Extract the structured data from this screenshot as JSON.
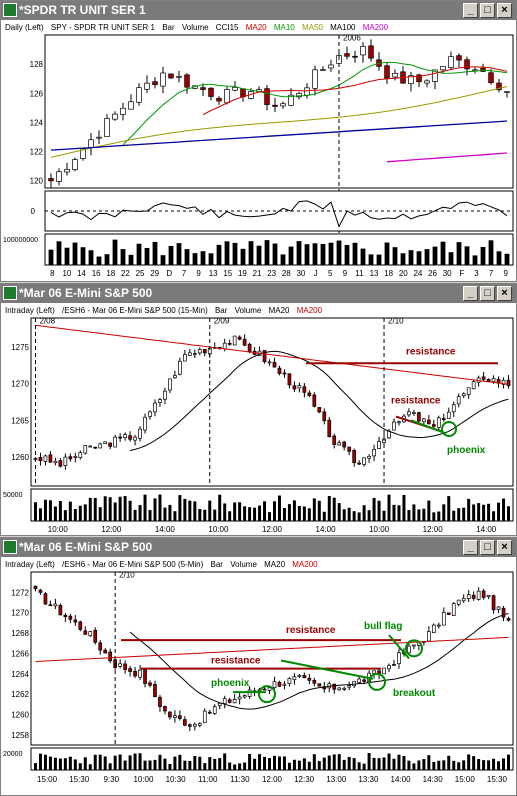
{
  "colors": {
    "title_bg": "#7a7a7a",
    "up": "#ffffff",
    "down": "#a00000",
    "ma20": "#cc0000",
    "ma10": "#009900",
    "ma50": "#999900",
    "ma100": "#000099",
    "ma200": "#cc00cc",
    "annot_red": "#990000",
    "annot_green": "#008800"
  },
  "windows": [
    {
      "title": "*SPDR TR UNIT SER 1",
      "info": [
        "Daily (Left)",
        "SPY - SPDR TR UNIT SER 1",
        "Bar",
        "Volume",
        "CCI15",
        "MA20",
        "MA10",
        "MA50",
        "MA100",
        "MA200"
      ],
      "period_label": "2006"
    },
    {
      "title": "*Mar 06  E-Mini S&P 500",
      "info": [
        "Intraday (Left)",
        "/ESH6 - Mar 06  E-Mini S&P 500 (15-Min)",
        "Bar",
        "Volume",
        "MA20",
        "MA200"
      ]
    },
    {
      "title": "*Mar 06  E-Mini S&P 500",
      "info": [
        "Intraday (Left)",
        "/ESH6 - Mar 06  E-Mini S&P 500 (5-Min)",
        "Bar",
        "Volume",
        "MA20",
        "MA200"
      ]
    }
  ],
  "chart_data": [
    {
      "type": "candlestick",
      "title": "SPY daily",
      "ylim": [
        119.5,
        130
      ],
      "yticks": [
        "128",
        "126",
        "124",
        "122",
        "120"
      ],
      "xlabels": [
        "8",
        "10",
        "14",
        "16",
        "18",
        "22",
        "25",
        "29",
        "D",
        "7",
        "9",
        "13",
        "15",
        "19",
        "21",
        "23",
        "28",
        "30",
        "J",
        "5",
        "9",
        "11",
        "13",
        "18",
        "20",
        "24",
        "26",
        "30",
        "F",
        "3",
        "7",
        "9"
      ],
      "indicator_label": "0",
      "volume_label": "100000000"
    },
    {
      "type": "candlestick",
      "title": "ES 15-min",
      "ylim": [
        1256,
        1279
      ],
      "yticks": [
        "1275",
        "1270",
        "1265",
        "1260"
      ],
      "day_labels": [
        "2/08",
        "2/09",
        "2/10"
      ],
      "xlabels": [
        "10:00",
        "12:00",
        "14:00",
        "10:00",
        "12:00",
        "14:00",
        "10:00",
        "12:00",
        "14:00"
      ],
      "volume_label": "50000",
      "annotations": [
        "resistance",
        "resistance",
        "phoenix"
      ]
    },
    {
      "type": "candlestick",
      "title": "ES 5-min",
      "ylim": [
        1257,
        1274
      ],
      "yticks": [
        "1272",
        "1270",
        "1268",
        "1266",
        "1264",
        "1262",
        "1260",
        "1258"
      ],
      "day_labels": [
        "2/10"
      ],
      "xlabels": [
        "15:00",
        "15:30",
        "9:30",
        "10:00",
        "10:30",
        "11:00",
        "11:30",
        "12:00",
        "12:30",
        "13:00",
        "13:30",
        "14:00",
        "14:30",
        "15:00",
        "15:30"
      ],
      "volume_label": "20000",
      "annotations": [
        "resistance",
        "resistance",
        "phoenix",
        "bull flag",
        "breakout"
      ]
    }
  ]
}
